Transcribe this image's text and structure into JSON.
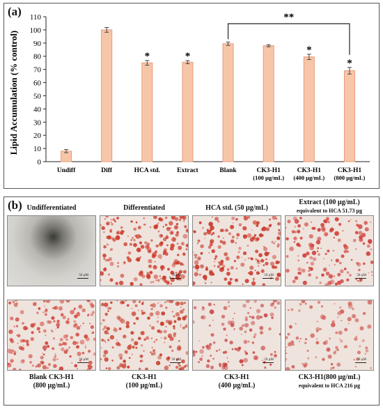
{
  "panel_a": {
    "label": "(a)"
  },
  "panel_b": {
    "label": "(b)",
    "images": [
      {
        "title": "Undifferentiated",
        "subtitle": "",
        "scale_label": "50 µM",
        "color": "#c9c9c6",
        "density": 0
      },
      {
        "title": "Differentiated",
        "subtitle": "",
        "scale_label": "50 µM",
        "color": "#cc3a2a",
        "density": 0.65
      },
      {
        "title": "HCA std. (50 µg/mL)",
        "subtitle": "",
        "scale_label": "50 µM",
        "color": "#c93a2c",
        "density": 0.55
      },
      {
        "title": "Extract (100 µg/mL)",
        "subtitle": "equivalent to HCA 51.73 µg",
        "scale_label": "50 µM",
        "color": "#d0403a",
        "density": 0.4
      },
      {
        "title": "Blank CK3-H1",
        "subtitle": "(800 µg/mL)",
        "scale_label": "50 µM",
        "color": "#d0453a",
        "density": 0.5
      },
      {
        "title": "CK3-H1",
        "subtitle": "(100 µg/mL)",
        "scale_label": "50 µM",
        "color": "#c9412e",
        "density": 0.55
      },
      {
        "title": "CK3-H1",
        "subtitle": "(400 µg/mL)",
        "scale_label": "50 µM",
        "color": "#c94a48",
        "density": 0.3
      },
      {
        "title": "CK3-H1(800 µg/mL)",
        "subtitle": "equivalent to HCA 216 µg",
        "scale_label": "50 µM",
        "color": "#d06058",
        "density": 0.22
      }
    ]
  },
  "chart_data": {
    "type": "bar",
    "title": "",
    "xlabel": "",
    "ylabel": "Lipid Accumulation (% control)",
    "ylim": [
      0,
      110
    ],
    "yticks": [
      0,
      10,
      20,
      30,
      40,
      50,
      60,
      70,
      80,
      90,
      100,
      110
    ],
    "grid": false,
    "bar_color": "#f7c6a9",
    "bar_edge_color": "#e7997a",
    "categories": [
      [
        "Undiff"
      ],
      [
        "Diff"
      ],
      [
        "HCA std."
      ],
      [
        "Extract"
      ],
      [
        "Blank"
      ],
      [
        "CK3-H1",
        "(100 µg/mL)"
      ],
      [
        "CK3-H1",
        "(400 µg/mL)"
      ],
      [
        "CK3-H1",
        "(800 µg/mL)"
      ]
    ],
    "values": [
      8,
      100,
      75,
      75.5,
      89.5,
      88,
      79.5,
      69
    ],
    "errors": [
      1.2,
      1.8,
      1.8,
      1.2,
      1.3,
      0.8,
      2.0,
      2.5
    ],
    "annotations": [
      "",
      "",
      "*",
      "*",
      "",
      "",
      "*",
      "*"
    ],
    "bracket": {
      "from": 4,
      "to": 7,
      "label": "**"
    }
  }
}
